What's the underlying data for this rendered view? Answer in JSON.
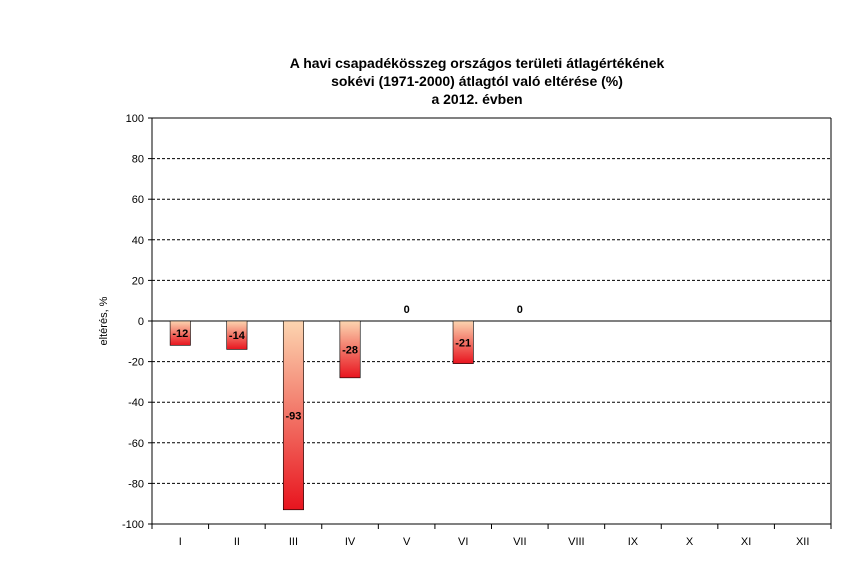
{
  "chart_data": {
    "type": "bar",
    "title_lines": [
      "A havi csapadékösszeg országos területi átlagértékének",
      "sokévi (1971-2000) átlagtól való eltérése (%)",
      "a 2012. évben"
    ],
    "ylabel": "eltérés, %",
    "xlabel": "",
    "ylim": [
      -100,
      100
    ],
    "ytick_step": 20,
    "yticks": [
      "100",
      "80",
      "60",
      "40",
      "20",
      "0",
      "-20",
      "-40",
      "-60",
      "-80",
      "-100"
    ],
    "categories": [
      "I",
      "II",
      "III",
      "IV",
      "V",
      "VI",
      "VII",
      "VIII",
      "IX",
      "X",
      "XI",
      "XII"
    ],
    "values": [
      -12,
      -14,
      -93,
      -28,
      0,
      -21,
      0,
      null,
      null,
      null,
      null,
      null
    ],
    "data_labels": [
      "-12",
      "-14",
      "-93",
      "-28",
      "0",
      "-21",
      "0",
      "",
      "",
      "",
      "",
      ""
    ],
    "grid": "horizontal dashed",
    "legend": "none",
    "colors": {
      "bar_top": "#fcd5b0",
      "bar_bottom": "#e8141e",
      "bar_edge": "#000000",
      "grid": "#000000"
    }
  }
}
